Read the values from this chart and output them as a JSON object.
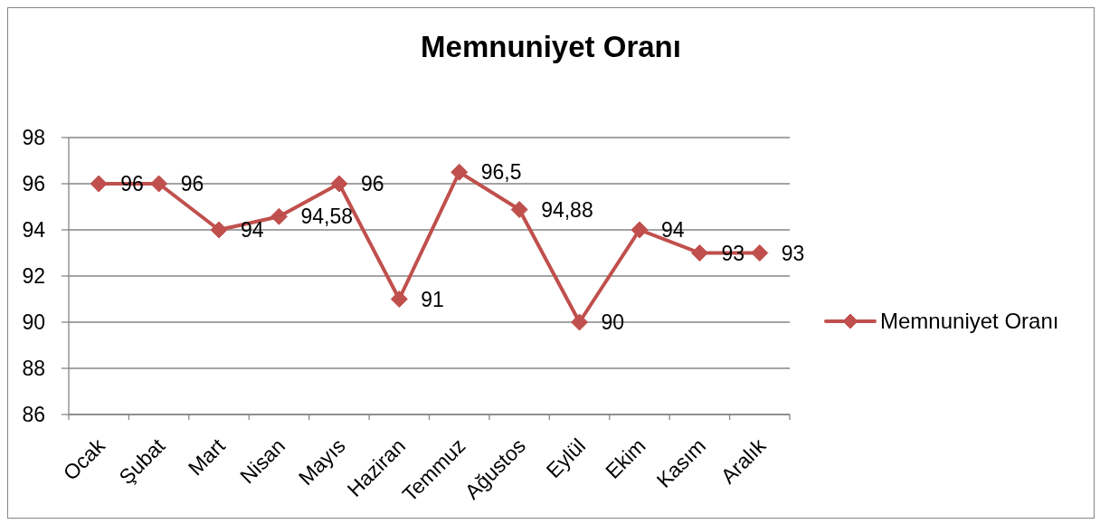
{
  "chart_data": {
    "type": "line",
    "title": "Memnuniyet Oranı",
    "categories": [
      "Ocak",
      "Şubat",
      "Mart",
      "Nisan",
      "Mayıs",
      "Haziran",
      "Temmuz",
      "Ağustos",
      "Eylül",
      "Ekim",
      "Kasım",
      "Aralık"
    ],
    "series": [
      {
        "name": "Memnuniyet Oranı",
        "color": "#c0504d",
        "values": [
          96,
          96,
          94,
          94.58,
          96,
          91,
          96.5,
          94.88,
          90,
          94,
          93,
          93
        ],
        "value_labels": [
          "96",
          "96",
          "94",
          "94,58",
          "96",
          "91",
          "96,5",
          "94,88",
          "90",
          "94",
          "93",
          "93"
        ]
      }
    ],
    "ylim": [
      86,
      98
    ],
    "yticks": [
      86,
      88,
      90,
      92,
      94,
      96,
      98
    ],
    "grid": "y",
    "legend": "right",
    "marker": "diamond",
    "line_style": "solid"
  }
}
